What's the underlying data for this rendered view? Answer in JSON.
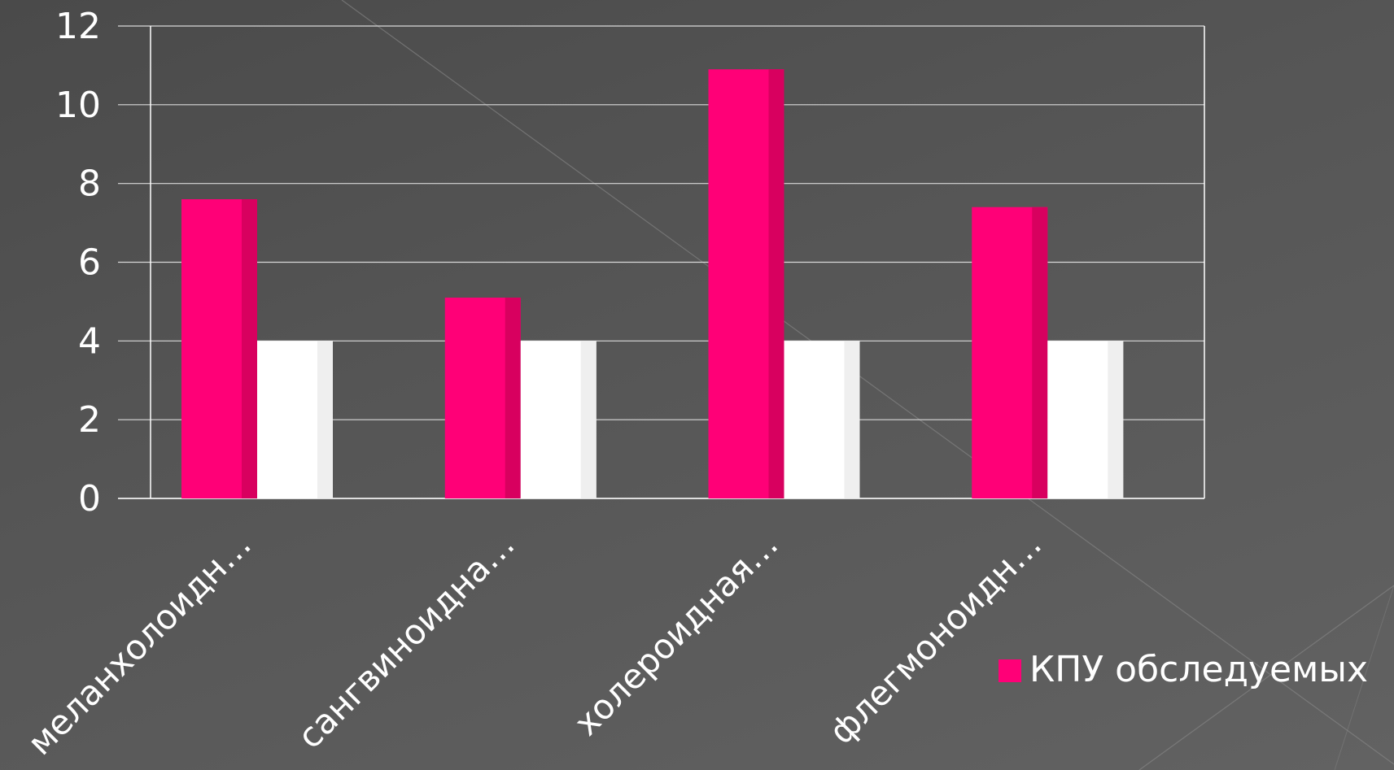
{
  "chart_data": {
    "type": "bar",
    "categories": [
      "меланхолоидн…",
      "сангвиноидна…",
      "холероидная…",
      "флегмоноидн…"
    ],
    "series": [
      {
        "name": "КПУ обследуемых",
        "values": [
          7.6,
          5.1,
          10.9,
          7.4
        ],
        "color": "#ff0077",
        "side_color": "#d8005f"
      },
      {
        "name": "",
        "values": [
          4,
          4,
          4,
          4
        ],
        "color": "#ffffff",
        "side_color": "#efefef"
      }
    ],
    "yticks": [
      0,
      2,
      4,
      6,
      8,
      10,
      12
    ],
    "ylim": [
      0,
      12
    ],
    "grid": true,
    "legend": {
      "placement": "right",
      "entries": [
        "КПУ обследуемых"
      ]
    },
    "gridline_color": "#d9d9d9",
    "background_color": "#4f4f4f"
  }
}
